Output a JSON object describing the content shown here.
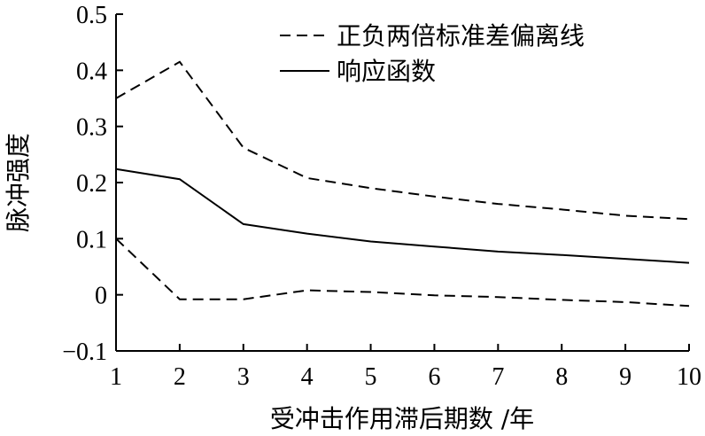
{
  "chart_data": {
    "type": "line",
    "xlabel": "受冲击作用滞后期数 /年",
    "ylabel": "脉冲强度",
    "xlim": [
      1,
      10
    ],
    "ylim": [
      -0.1,
      0.5
    ],
    "x_ticks": [
      "1",
      "2",
      "3",
      "4",
      "5",
      "6",
      "7",
      "8",
      "9",
      "10"
    ],
    "y_ticks": [
      "0.5",
      "0.4",
      "0.3",
      "0.2",
      "0.1",
      "0",
      "−0.1"
    ],
    "legend_position": "top-right",
    "x": [
      1,
      2,
      3,
      4,
      5,
      6,
      7,
      8,
      9,
      10
    ],
    "series": [
      {
        "name": "正负两倍标准差偏离线",
        "style": "dashed",
        "values": [
          0.35,
          0.415,
          0.262,
          0.208,
          0.19,
          0.175,
          0.162,
          0.152,
          0.141,
          0.135
        ]
      },
      {
        "name": "响应函数",
        "style": "solid",
        "values": [
          0.224,
          0.206,
          0.126,
          0.109,
          0.095,
          0.086,
          0.077,
          0.071,
          0.064,
          0.057
        ]
      },
      {
        "style": "dashed",
        "values": [
          0.1,
          -0.008,
          -0.008,
          0.008,
          0.005,
          -0.001,
          -0.004,
          -0.009,
          -0.013,
          -0.02
        ]
      }
    ]
  }
}
